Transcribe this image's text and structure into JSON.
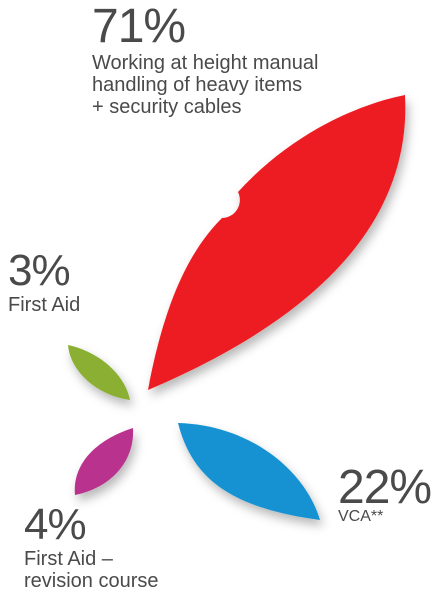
{
  "chart_data": {
    "type": "pie",
    "slices": [
      {
        "key": "working",
        "value": 71,
        "percent_label": "71%",
        "label": "Working at height manual handling of heavy items + security cables",
        "label_lines": [
          "Working at height manual",
          "handling of heavy items",
          "+ security cables"
        ],
        "color": "#ed1f24"
      },
      {
        "key": "vca",
        "value": 22,
        "percent_label": "22%",
        "label": "VCA**",
        "label_lines": [
          "VCA**"
        ],
        "color": "#1792d3"
      },
      {
        "key": "first_aid_revision",
        "value": 4,
        "percent_label": "4%",
        "label": "First Aid – revision course",
        "label_lines": [
          "First Aid –",
          "revision course"
        ],
        "color": "#b8338e"
      },
      {
        "key": "first_aid",
        "value": 3,
        "percent_label": "3%",
        "label": "First Aid",
        "label_lines": [
          "First Aid"
        ],
        "color": "#8aaf32"
      }
    ]
  }
}
